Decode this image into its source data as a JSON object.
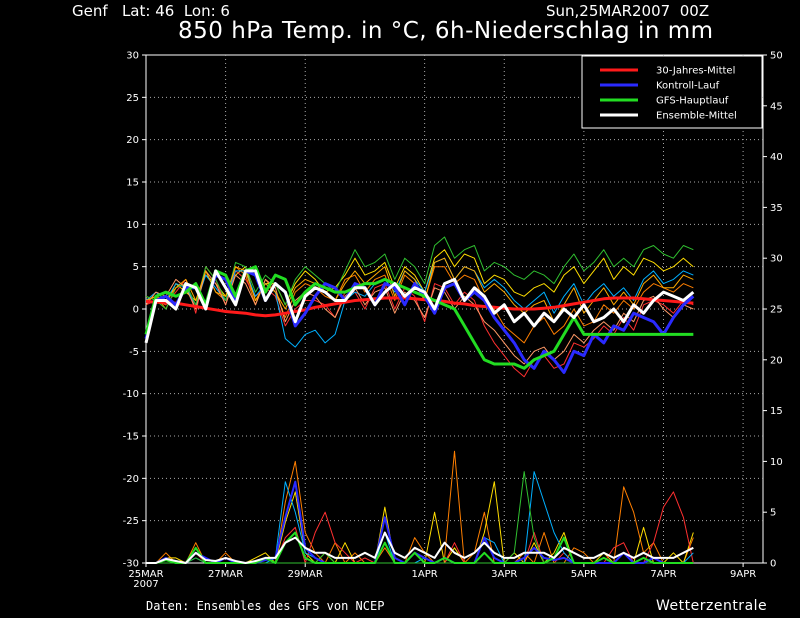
{
  "header": {
    "location": "Genf   Lat: 46  Lon: 6",
    "run": "Sun,25MAR2007  00Z",
    "title": "850 hPa Temp. in °C, 6h-Niederschlag in mm"
  },
  "footer": {
    "credit": "Daten: Ensembles des GFS von NCEP",
    "brand": "Wetterzentrale"
  },
  "chart_data": {
    "type": "line",
    "title": "850 hPa Temp. in °C, 6h-Niederschlag in mm",
    "background": "#000000",
    "grid": true,
    "legend_position": "top-right",
    "x_ticks": [
      {
        "label": "25MAR",
        "label2": "2007",
        "t": 0
      },
      {
        "label": "27MAR",
        "t": 8
      },
      {
        "label": "29MAR",
        "t": 16
      },
      {
        "label": "1APR",
        "t": 28
      },
      {
        "label": "3APR",
        "t": 36
      },
      {
        "label": "5APR",
        "t": 44
      },
      {
        "label": "7APR",
        "t": 52
      },
      {
        "label": "9APR",
        "t": 60
      }
    ],
    "x_range": [
      0,
      62
    ],
    "y_left": {
      "min": -30,
      "max": 30,
      "step": 5
    },
    "y_right": {
      "min": 0,
      "max": 50,
      "step": 5
    },
    "legend": [
      {
        "name": "30-Jahres-Mittel",
        "color": "#ff1a1a"
      },
      {
        "name": "Kontroll-Lauf",
        "color": "#2a2aff"
      },
      {
        "name": "GFS-Hauptlauf",
        "color": "#22dd22"
      },
      {
        "name": "Ensemble-Mittel",
        "color": "#ffffff"
      }
    ],
    "ensemble_colors": [
      "#ff7f00",
      "#ffdd00",
      "#ff3030",
      "#00b0ff",
      "#30c030",
      "#ff9966",
      "#ffaa00"
    ],
    "temperature_series": [
      {
        "name": "30-Jahres-Mittel",
        "color": "#ff1a1a",
        "width": 3,
        "values": [
          0.9,
          0.8,
          0.8,
          0.7,
          0.5,
          0.3,
          0.1,
          -0.1,
          -0.3,
          -0.4,
          -0.5,
          -0.7,
          -0.8,
          -0.7,
          -0.5,
          -0.3,
          -0.1,
          0.2,
          0.4,
          0.6,
          0.8,
          1.0,
          1.1,
          1.2,
          1.3,
          1.3,
          1.3,
          1.2,
          1.1,
          1.0,
          0.9,
          0.7,
          0.6,
          0.4,
          0.3,
          0.2,
          0.1,
          0.0,
          0.0,
          0.0,
          0.1,
          0.2,
          0.4,
          0.6,
          0.8,
          1.0,
          1.2,
          1.3,
          1.3,
          1.3,
          1.2,
          1.1,
          1.0,
          0.9,
          0.8,
          0.7
        ]
      },
      {
        "name": "Kontroll-Lauf",
        "color": "#2a2aff",
        "width": 3,
        "values": [
          -3.5,
          1.0,
          1.5,
          0.5,
          2.5,
          2.5,
          0.5,
          4.0,
          3.5,
          1.0,
          4.5,
          4.0,
          1.0,
          3.0,
          2.0,
          -2.0,
          -0.5,
          1.5,
          3.0,
          2.5,
          1.0,
          3.0,
          2.5,
          0.5,
          3.0,
          2.5,
          0.5,
          3.0,
          1.5,
          -0.5,
          2.5,
          3.0,
          1.0,
          2.0,
          1.0,
          -1.0,
          -2.5,
          -4.0,
          -6.0,
          -7.0,
          -5.0,
          -6.0,
          -7.5,
          -5.0,
          -5.5,
          -3.0,
          -4.0,
          -2.0,
          -2.5,
          -0.5,
          -1.0,
          -1.5,
          -3.0,
          -1.0,
          0.5,
          1.5
        ]
      },
      {
        "name": "GFS-Hauptlauf",
        "color": "#22dd22",
        "width": 3,
        "values": [
          -3.0,
          1.5,
          2.0,
          1.5,
          2.0,
          3.0,
          0.5,
          4.5,
          4.0,
          1.5,
          4.5,
          5.0,
          2.0,
          4.0,
          3.5,
          0.5,
          2.0,
          3.0,
          2.5,
          2.0,
          2.0,
          2.5,
          3.0,
          3.0,
          3.5,
          3.0,
          2.5,
          2.0,
          1.5,
          1.0,
          0.5,
          0.0,
          -2.0,
          -4.0,
          -6.0,
          -6.5,
          -6.5,
          -6.5,
          -7.0,
          -6.0,
          -5.5,
          -5.0,
          -3.0,
          -1.0,
          -3.0,
          -3.0,
          -3.0,
          -3.0,
          -3.0,
          -3.0,
          -3.0,
          -3.0,
          -3.0,
          -3.0,
          -3.0,
          -3.0
        ]
      },
      {
        "name": "Ensemble-Mittel",
        "color": "#ffffff",
        "width": 3,
        "values": [
          -4.0,
          1.0,
          1.0,
          0.0,
          3.0,
          2.5,
          0.0,
          4.5,
          2.5,
          0.5,
          4.5,
          4.5,
          1.0,
          3.0,
          2.0,
          -1.5,
          1.5,
          2.5,
          2.0,
          1.0,
          1.0,
          2.5,
          2.5,
          0.5,
          2.0,
          3.0,
          1.5,
          2.5,
          2.0,
          0.0,
          3.0,
          3.5,
          1.0,
          2.5,
          1.5,
          -0.5,
          0.5,
          -1.5,
          -0.5,
          -2.0,
          -0.5,
          -1.5,
          0.0,
          -1.0,
          0.5,
          -1.5,
          -1.0,
          0.0,
          -1.5,
          0.5,
          -0.5,
          1.0,
          2.0,
          1.5,
          1.0,
          2.0
        ]
      }
    ],
    "ensemble_temperature_members": [
      [
        1.0,
        1.5,
        0.0,
        2.5,
        3.0,
        0.0,
        4.5,
        2.0,
        1.0,
        5.0,
        4.0,
        0.5,
        3.5,
        2.0,
        -1.0,
        2.0,
        3.0,
        2.5,
        1.5,
        1.0,
        3.5,
        4.0,
        2.0,
        3.5,
        4.0,
        1.0,
        4.0,
        3.0,
        1.0,
        5.0,
        5.0,
        3.0,
        4.0,
        3.5,
        1.0,
        0.0,
        -2.0,
        -3.0,
        -4.0,
        -2.0,
        -1.0,
        -3.0,
        -2.0,
        0.0,
        -2.0,
        -1.5,
        0.5,
        -0.5,
        1.0,
        0.0,
        2.0,
        3.0,
        2.5,
        2.0,
        3.0,
        2.5
      ],
      [
        1.5,
        1.0,
        0.5,
        3.0,
        2.0,
        1.0,
        4.0,
        3.0,
        1.5,
        4.0,
        5.0,
        1.0,
        3.0,
        3.0,
        0.5,
        3.0,
        4.5,
        3.5,
        2.0,
        2.5,
        4.0,
        6.0,
        4.0,
        4.5,
        5.5,
        2.5,
        5.0,
        4.0,
        2.0,
        6.0,
        7.0,
        5.0,
        6.5,
        6.0,
        3.0,
        4.0,
        3.5,
        2.0,
        1.5,
        2.5,
        3.0,
        2.0,
        4.0,
        5.0,
        3.0,
        4.5,
        6.0,
        3.5,
        5.0,
        4.0,
        6.0,
        5.5,
        4.5,
        5.0,
        6.0,
        5.0
      ],
      [
        0.5,
        1.0,
        0.5,
        2.0,
        3.5,
        -0.5,
        5.0,
        3.5,
        0.5,
        4.5,
        3.5,
        1.5,
        2.5,
        1.5,
        -2.0,
        0.0,
        1.0,
        1.0,
        0.5,
        -1.0,
        2.0,
        2.0,
        0.0,
        2.5,
        3.0,
        0.0,
        2.5,
        1.5,
        -1.5,
        3.0,
        2.5,
        0.5,
        2.0,
        1.0,
        -2.0,
        -4.0,
        -5.5,
        -7.0,
        -8.0,
        -6.0,
        -5.5,
        -7.0,
        -6.5,
        -4.0,
        -4.5,
        -3.5,
        -2.0,
        -3.0,
        -1.0,
        -2.5,
        0.5,
        1.0,
        0.5,
        -0.5,
        1.0,
        0.5
      ],
      [
        1.0,
        2.0,
        1.0,
        3.0,
        2.5,
        0.5,
        4.0,
        2.5,
        1.0,
        4.5,
        4.5,
        1.5,
        3.0,
        2.0,
        -3.5,
        -4.5,
        -3.0,
        -2.5,
        -4.0,
        -3.0,
        1.0,
        2.0,
        1.5,
        3.0,
        3.5,
        2.0,
        4.5,
        3.5,
        2.0,
        5.5,
        6.0,
        3.5,
        5.0,
        4.5,
        2.5,
        3.5,
        2.5,
        1.0,
        0.0,
        1.0,
        2.0,
        -0.5,
        1.5,
        3.0,
        0.5,
        2.0,
        3.0,
        1.5,
        2.5,
        1.0,
        3.5,
        4.5,
        3.0,
        3.5,
        4.5,
        4.0
      ],
      [
        1.5,
        1.0,
        0.0,
        2.5,
        3.0,
        0.5,
        5.0,
        3.5,
        1.0,
        5.5,
        5.0,
        2.0,
        4.0,
        3.0,
        0.5,
        3.5,
        5.0,
        4.0,
        3.0,
        2.0,
        4.5,
        7.0,
        5.0,
        5.5,
        6.5,
        3.5,
        6.0,
        5.0,
        3.0,
        7.5,
        8.5,
        6.0,
        7.0,
        7.5,
        4.5,
        5.5,
        5.0,
        4.0,
        3.5,
        4.5,
        4.0,
        3.0,
        5.0,
        6.5,
        4.5,
        5.5,
        7.0,
        5.0,
        6.0,
        5.0,
        7.0,
        7.5,
        6.5,
        6.0,
        7.5,
        7.0
      ],
      [
        0.5,
        2.0,
        1.5,
        3.5,
        2.5,
        0.0,
        4.5,
        3.0,
        0.5,
        4.0,
        3.0,
        0.5,
        3.5,
        2.5,
        -1.5,
        1.0,
        2.0,
        1.5,
        0.0,
        -1.0,
        1.5,
        2.5,
        0.5,
        2.0,
        2.5,
        -0.5,
        2.0,
        1.0,
        -1.0,
        2.5,
        2.0,
        0.0,
        1.5,
        0.5,
        -1.5,
        -2.5,
        -4.0,
        -5.5,
        -6.5,
        -5.0,
        -4.5,
        -6.0,
        -5.0,
        -3.0,
        -4.0,
        -2.5,
        -1.5,
        -2.5,
        -0.5,
        -1.5,
        1.0,
        1.5,
        0.0,
        -1.0,
        0.5,
        0.0
      ],
      [
        1.0,
        1.5,
        1.0,
        2.5,
        3.5,
        1.0,
        4.5,
        2.0,
        1.5,
        5.0,
        4.5,
        1.0,
        3.0,
        2.0,
        0.0,
        2.5,
        3.5,
        3.0,
        2.0,
        1.0,
        3.0,
        4.5,
        3.0,
        4.0,
        5.0,
        1.5,
        4.5,
        3.5,
        1.0,
        5.5,
        6.0,
        3.5,
        5.0,
        4.5,
        2.0,
        3.0,
        2.0,
        0.5,
        -0.5,
        0.5,
        1.0,
        -1.5,
        0.5,
        2.5,
        -0.5,
        1.0,
        2.5,
        0.5,
        2.0,
        0.5,
        3.0,
        4.0,
        2.5,
        2.5,
        4.0,
        3.5
      ]
    ],
    "precipitation_series_mm": [
      {
        "name": "Kontroll-Lauf",
        "color": "#2a2aff",
        "values": [
          0,
          0,
          0.5,
          0,
          0,
          1.0,
          0.5,
          0,
          0.5,
          0,
          0,
          0,
          0.3,
          0.5,
          4.5,
          8.0,
          1.5,
          0.5,
          0,
          0,
          0,
          0,
          0,
          0,
          4.5,
          0.5,
          0,
          1.0,
          0.5,
          0,
          0.5,
          0,
          0,
          0,
          2.5,
          0.5,
          0,
          0,
          0.5,
          1.5,
          0.5,
          0.3,
          0.5,
          0,
          0,
          0,
          0,
          0,
          1.0,
          0,
          0,
          0.5,
          0,
          0,
          0,
          0
        ]
      },
      {
        "name": "GFS-Hauptlauf",
        "color": "#22dd22",
        "values": [
          0,
          0,
          0.3,
          0,
          0,
          1.5,
          0,
          0,
          0,
          0,
          0,
          0,
          0.5,
          0,
          2.0,
          3.0,
          0.5,
          0,
          0,
          0,
          0,
          0,
          0,
          0,
          2.0,
          0,
          0,
          1.0,
          0,
          0,
          0.5,
          0,
          0,
          0,
          1.0,
          0,
          0,
          0,
          0,
          0,
          0,
          0.5,
          2.5,
          0,
          0,
          0,
          0.5,
          0,
          0,
          0,
          0.5,
          0,
          0,
          0,
          0,
          0
        ]
      },
      {
        "name": "Ensemble-Mittel",
        "color": "#ffffff",
        "values": [
          0,
          0,
          0.4,
          0.2,
          0,
          1.0,
          0.3,
          0.2,
          0.5,
          0.2,
          0,
          0.2,
          0.5,
          0.5,
          2.0,
          2.5,
          1.5,
          1.0,
          1.0,
          0.5,
          0.5,
          0.5,
          1.0,
          0.5,
          3.0,
          1.0,
          0.5,
          1.5,
          1.0,
          0.5,
          2.0,
          1.0,
          0.5,
          1.0,
          2.0,
          1.0,
          0.5,
          0.5,
          1.0,
          1.0,
          1.0,
          0.5,
          1.5,
          1.0,
          0.5,
          0.5,
          1.0,
          0.5,
          1.0,
          0.5,
          1.0,
          0.5,
          0.5,
          0.5,
          1.0,
          1.5
        ]
      }
    ],
    "ensemble_precipitation_members_mm": [
      [
        0,
        0,
        1.0,
        0,
        0,
        2.0,
        0,
        0,
        1.0,
        0,
        0,
        0,
        0.5,
        0,
        6.0,
        10.0,
        3.0,
        1.0,
        0,
        2.0,
        0,
        1.0,
        0,
        0,
        1.5,
        0,
        0,
        2.5,
        1.0,
        0,
        0.5,
        11.0,
        0,
        1.0,
        5.0,
        0,
        0,
        0,
        1.0,
        0,
        3.0,
        0,
        0,
        1.5,
        1.0,
        0,
        0,
        0,
        7.5,
        5.0,
        1.0,
        2.0,
        0,
        0,
        0,
        2.5
      ],
      [
        0,
        0,
        0.5,
        0.5,
        0,
        1.5,
        0,
        0,
        0.5,
        0,
        0,
        0.5,
        1.0,
        0,
        4.0,
        7.0,
        1.0,
        0,
        1.0,
        0,
        2.0,
        0,
        0,
        0,
        5.5,
        0,
        0,
        1.0,
        0,
        5.0,
        0,
        1.5,
        0,
        0,
        3.0,
        8.0,
        0,
        1.0,
        0,
        2.0,
        0,
        1.0,
        3.0,
        0,
        0,
        0,
        1.0,
        0,
        0,
        0,
        3.5,
        0,
        0,
        1.0,
        0,
        3.0
      ],
      [
        0,
        0,
        0.5,
        0,
        0,
        1.0,
        0,
        0,
        0,
        0,
        0,
        0,
        0,
        0,
        2.5,
        3.5,
        0,
        3.0,
        5.0,
        2.0,
        1.0,
        0,
        0.5,
        0,
        2.0,
        0,
        0,
        0,
        0,
        0,
        0,
        2.0,
        0,
        0,
        0,
        0,
        0,
        0,
        0,
        3.0,
        0,
        0,
        1.0,
        0,
        0,
        0,
        0,
        1.5,
        2.0,
        0,
        0,
        2.0,
        5.5,
        7.0,
        4.5,
        0
      ],
      [
        0,
        0,
        0.3,
        0,
        0,
        0.5,
        0,
        0,
        0,
        0,
        0,
        0,
        0,
        0.5,
        8.0,
        5.0,
        1.0,
        0.5,
        0,
        0,
        0,
        0,
        0,
        0,
        3.0,
        0,
        0,
        0,
        0.5,
        0,
        0.5,
        0,
        0,
        0,
        2.5,
        2.0,
        0,
        0,
        0,
        9.0,
        6.0,
        3.0,
        1.0,
        0,
        0,
        0,
        0,
        0,
        0,
        0,
        0,
        0.5,
        0,
        0,
        0,
        1.0
      ],
      [
        0,
        0,
        0,
        0,
        0,
        0.5,
        0,
        0,
        0,
        0,
        0,
        0,
        0,
        0,
        0,
        0,
        0,
        0,
        1.0,
        0,
        0,
        0,
        0,
        0,
        0,
        0,
        0,
        0,
        0,
        0,
        0,
        0,
        0,
        0,
        0,
        0,
        0,
        1.0,
        9.0,
        2.5,
        0,
        0,
        0,
        0,
        0,
        0,
        0,
        0,
        0,
        0,
        0,
        0,
        0,
        0,
        0,
        0
      ]
    ]
  }
}
